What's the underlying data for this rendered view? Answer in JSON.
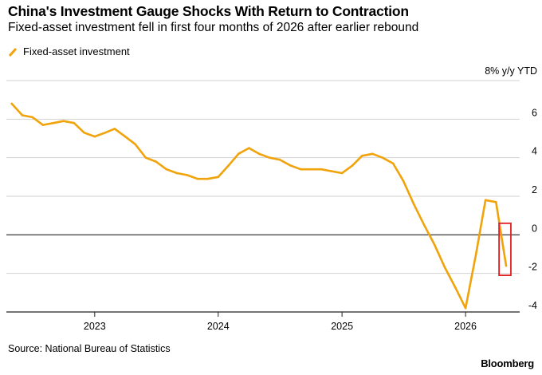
{
  "chart_data": {
    "type": "line",
    "title": "China's Investment Gauge Shocks With Return to Contraction",
    "subtitle": "Fixed-asset investment fell in first four months of 2026 after earlier rebound",
    "ylabel": "8% y/y YTD",
    "source": "Source: National Bureau of Statistics",
    "brand": "Bloomberg",
    "ylim": [
      -4,
      8
    ],
    "yticks": [
      6,
      4,
      2,
      0,
      -2,
      -4
    ],
    "xlim": [
      "2022-04-15",
      "2026-06-10"
    ],
    "xticks": [
      {
        "label": "2023",
        "date": "2023-01-01"
      },
      {
        "label": "2024",
        "date": "2024-01-01"
      },
      {
        "label": "2025",
        "date": "2025-01-01"
      },
      {
        "label": "2026",
        "date": "2026-01-01"
      }
    ],
    "legend_position": "top-left",
    "grid": true,
    "color": "#f0a30a",
    "highlight_color": "#e02020",
    "series": [
      {
        "name": "Fixed-asset investment",
        "points": [
          [
            "2022-05-01",
            6.8
          ],
          [
            "2022-06-01",
            6.2
          ],
          [
            "2022-07-01",
            6.1
          ],
          [
            "2022-08-01",
            5.7
          ],
          [
            "2022-09-01",
            5.8
          ],
          [
            "2022-10-01",
            5.9
          ],
          [
            "2022-11-01",
            5.8
          ],
          [
            "2022-12-01",
            5.3
          ],
          [
            "2023-01-01",
            5.1
          ],
          [
            "2023-02-01",
            5.3
          ],
          [
            "2023-03-01",
            5.5
          ],
          [
            "2023-04-01",
            5.1
          ],
          [
            "2023-05-01",
            4.7
          ],
          [
            "2023-06-01",
            4.0
          ],
          [
            "2023-07-01",
            3.8
          ],
          [
            "2023-08-01",
            3.4
          ],
          [
            "2023-09-01",
            3.2
          ],
          [
            "2023-10-01",
            3.1
          ],
          [
            "2023-11-01",
            2.9
          ],
          [
            "2023-12-01",
            2.9
          ],
          [
            "2024-01-01",
            3.0
          ],
          [
            "2024-02-01",
            3.6
          ],
          [
            "2024-03-01",
            4.2
          ],
          [
            "2024-04-01",
            4.5
          ],
          [
            "2024-05-01",
            4.2
          ],
          [
            "2024-06-01",
            4.0
          ],
          [
            "2024-07-01",
            3.9
          ],
          [
            "2024-08-01",
            3.6
          ],
          [
            "2024-09-01",
            3.4
          ],
          [
            "2024-10-01",
            3.4
          ],
          [
            "2024-11-01",
            3.4
          ],
          [
            "2024-12-01",
            3.3
          ],
          [
            "2025-01-01",
            3.2
          ],
          [
            "2025-02-01",
            3.6
          ],
          [
            "2025-03-01",
            4.1
          ],
          [
            "2025-04-01",
            4.2
          ],
          [
            "2025-05-01",
            4.0
          ],
          [
            "2025-06-01",
            3.7
          ],
          [
            "2025-07-01",
            2.8
          ],
          [
            "2025-08-01",
            1.6
          ],
          [
            "2025-09-01",
            0.5
          ],
          [
            "2025-10-01",
            -0.5
          ],
          [
            "2025-11-01",
            -1.7
          ],
          [
            "2025-12-01",
            -2.7
          ],
          [
            "2026-01-01",
            -3.8
          ],
          [
            "2026-02-01",
            -1.0
          ],
          [
            "2026-03-01",
            1.8
          ],
          [
            "2026-04-01",
            1.7
          ],
          [
            "2026-05-01",
            -1.6
          ]
        ]
      }
    ],
    "highlight_range": {
      "x": [
        "2026-04-10",
        "2026-05-15"
      ],
      "y": [
        -2.1,
        0.6
      ]
    }
  }
}
